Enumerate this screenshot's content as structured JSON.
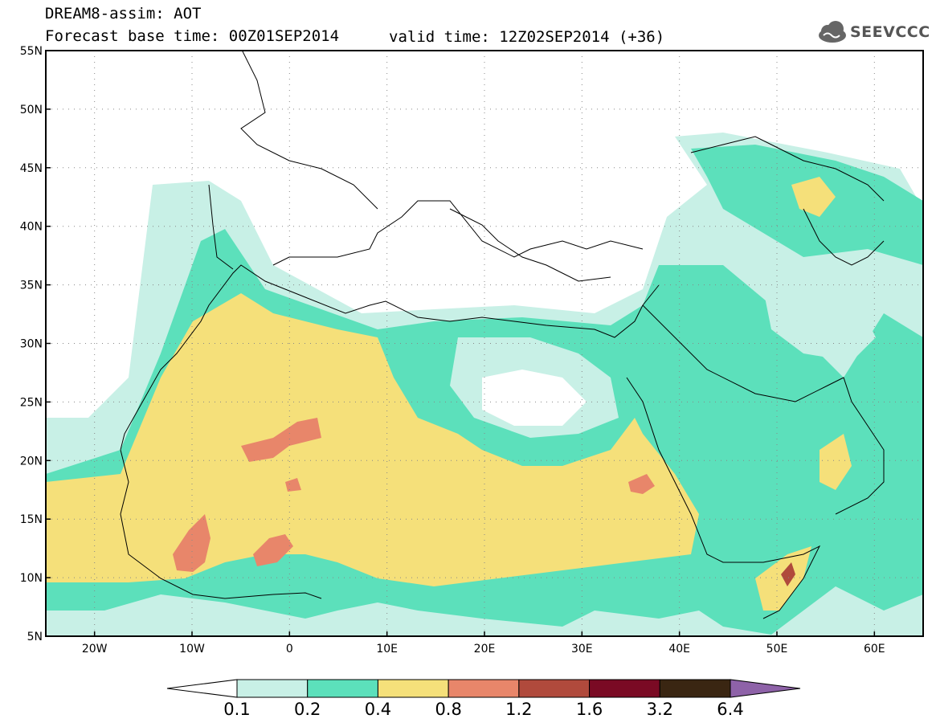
{
  "header": {
    "title_line1": "DREAM8-assim: AOT",
    "title_line2": "Forecast base time: 00Z01SEP2014",
    "valid_time": "valid time: 12Z02SEP2014 (+36)",
    "logo_text": "SEEVCCC"
  },
  "map": {
    "lon_range": [
      -25,
      65
    ],
    "lat_range": [
      5,
      55
    ],
    "lat_labels": [
      "55N",
      "50N",
      "45N",
      "40N",
      "35N",
      "30N",
      "25N",
      "20N",
      "15N",
      "10N",
      "5N"
    ],
    "lon_labels": [
      "20W",
      "10W",
      "0",
      "10E",
      "20E",
      "30E",
      "40E",
      "50E",
      "60E"
    ],
    "gridlines": true
  },
  "colorbar": {
    "levels": [
      "0.1",
      "0.2",
      "0.4",
      "0.8",
      "1.2",
      "1.6",
      "3.2",
      "6.4"
    ],
    "colors": [
      "#ffffff",
      "#c8f0e6",
      "#5ce0bb",
      "#f5e07a",
      "#e8866a",
      "#b04a3c",
      "#7a0a24",
      "#3a2612",
      "#8e62a8"
    ]
  },
  "colors": {
    "c1": "#c8f0e6",
    "c2": "#5ce0bb",
    "c3": "#f5e07a",
    "c4": "#e8866a",
    "c5": "#b04a3c"
  }
}
